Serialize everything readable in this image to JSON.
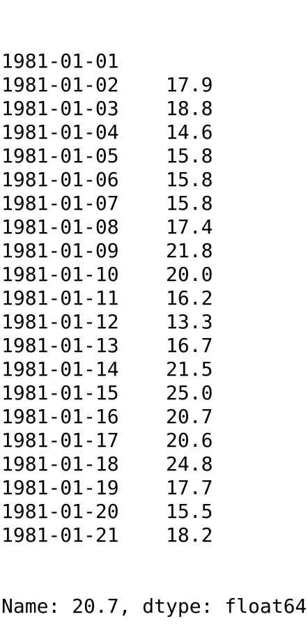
{
  "rows": [
    {
      "date": "1981-01-01",
      "value": ""
    },
    {
      "date": "1981-01-02",
      "value": "17.9"
    },
    {
      "date": "1981-01-03",
      "value": "18.8"
    },
    {
      "date": "1981-01-04",
      "value": "14.6"
    },
    {
      "date": "1981-01-05",
      "value": "15.8"
    },
    {
      "date": "1981-01-06",
      "value": "15.8"
    },
    {
      "date": "1981-01-07",
      "value": "15.8"
    },
    {
      "date": "1981-01-08",
      "value": "17.4"
    },
    {
      "date": "1981-01-09",
      "value": "21.8"
    },
    {
      "date": "1981-01-10",
      "value": "20.0"
    },
    {
      "date": "1981-01-11",
      "value": "16.2"
    },
    {
      "date": "1981-01-12",
      "value": "13.3"
    },
    {
      "date": "1981-01-13",
      "value": "16.7"
    },
    {
      "date": "1981-01-14",
      "value": "21.5"
    },
    {
      "date": "1981-01-15",
      "value": "25.0"
    },
    {
      "date": "1981-01-16",
      "value": "20.7"
    },
    {
      "date": "1981-01-17",
      "value": "20.6"
    },
    {
      "date": "1981-01-18",
      "value": "24.8"
    },
    {
      "date": "1981-01-19",
      "value": "17.7"
    },
    {
      "date": "1981-01-20",
      "value": "15.5"
    },
    {
      "date": "1981-01-21",
      "value": "18.2"
    }
  ],
  "footer": {
    "text": "Name: 20.7, dtype: float64"
  }
}
